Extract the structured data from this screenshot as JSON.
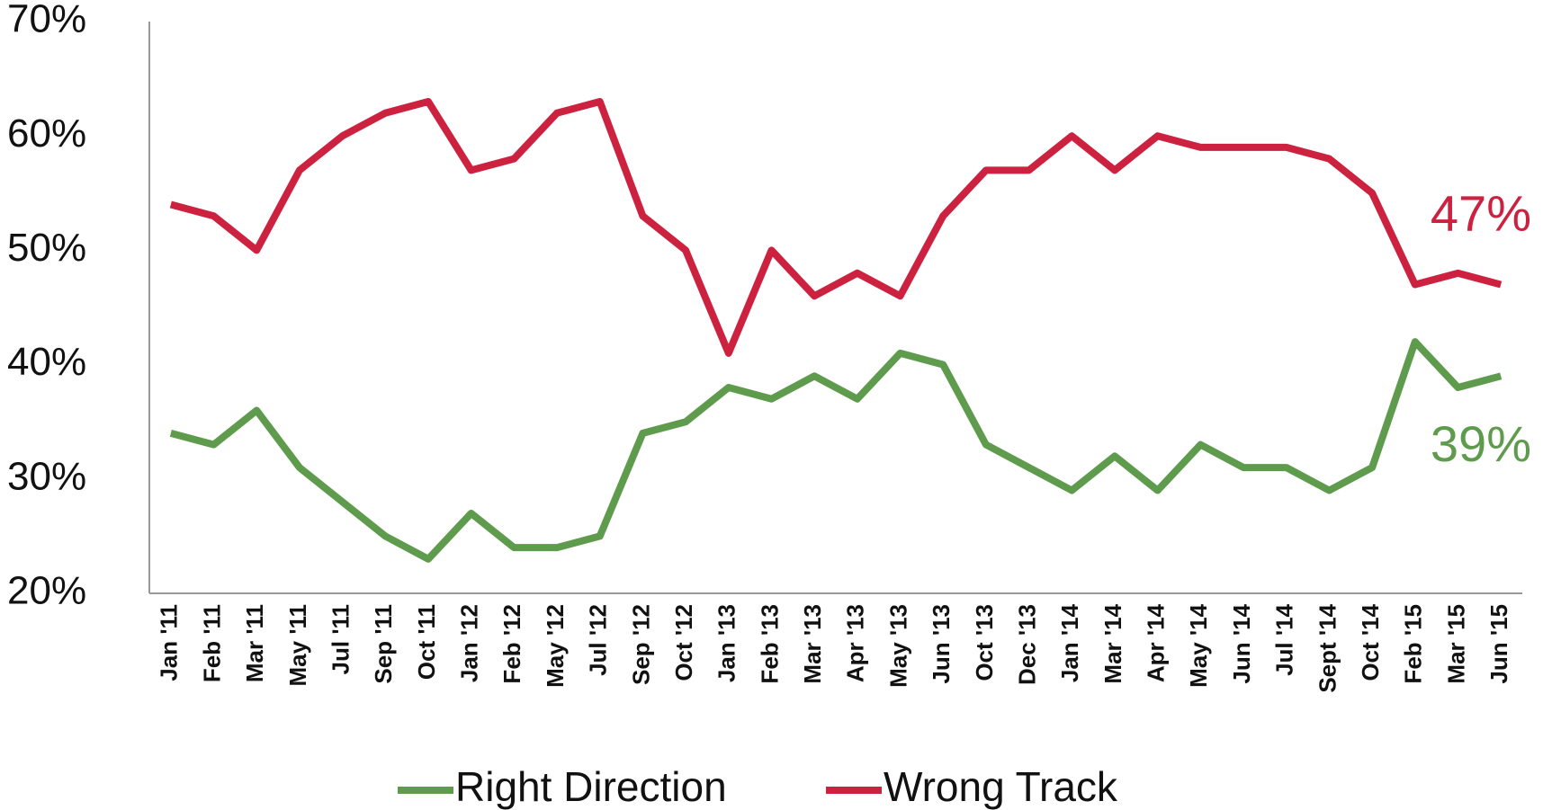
{
  "chart_data": {
    "type": "line",
    "categories": [
      "Jan '11",
      "Feb '11",
      "Mar '11",
      "May '11",
      "Jul '11",
      "Sep '11",
      "Oct '11",
      "Jan '12",
      "Feb '12",
      "May '12",
      "Jul '12",
      "Sep '12",
      "Oct '12",
      "Jan '13",
      "Feb '13",
      "Mar '13",
      "Apr '13",
      "May '13",
      "Jun '13",
      "Oct '13",
      "Dec '13",
      "Jan '14",
      "Mar '14",
      "Apr '14",
      "May '14",
      "Jun '14",
      "Jul '14",
      "Sept '14",
      "Oct '14",
      "Feb '15",
      "Mar '15",
      "Jun '15"
    ],
    "series": [
      {
        "name": "Right Direction",
        "color": "#5e9b4c",
        "end_label": "39%",
        "values": [
          34,
          33,
          36,
          31,
          28,
          25,
          23,
          27,
          24,
          24,
          25,
          34,
          35,
          38,
          37,
          39,
          37,
          41,
          40,
          33,
          31,
          29,
          32,
          29,
          33,
          31,
          31,
          29,
          31,
          42,
          38,
          39
        ]
      },
      {
        "name": "Wrong Track",
        "color": "#cc2240",
        "end_label": "47%",
        "values": [
          54,
          53,
          50,
          57,
          60,
          62,
          63,
          57,
          58,
          62,
          63,
          53,
          50,
          41,
          50,
          46,
          48,
          46,
          53,
          57,
          57,
          60,
          57,
          60,
          59,
          59,
          59,
          58,
          55,
          47,
          48,
          47
        ]
      }
    ],
    "ylim": [
      20,
      70
    ],
    "yticks": [
      {
        "value": 20,
        "label": "20%"
      },
      {
        "value": 30,
        "label": "30%"
      },
      {
        "value": 40,
        "label": "40%"
      },
      {
        "value": 50,
        "label": "50%"
      },
      {
        "value": 60,
        "label": "60%"
      },
      {
        "value": 70,
        "label": "70%"
      }
    ],
    "grid": false,
    "legend": "bottom"
  }
}
